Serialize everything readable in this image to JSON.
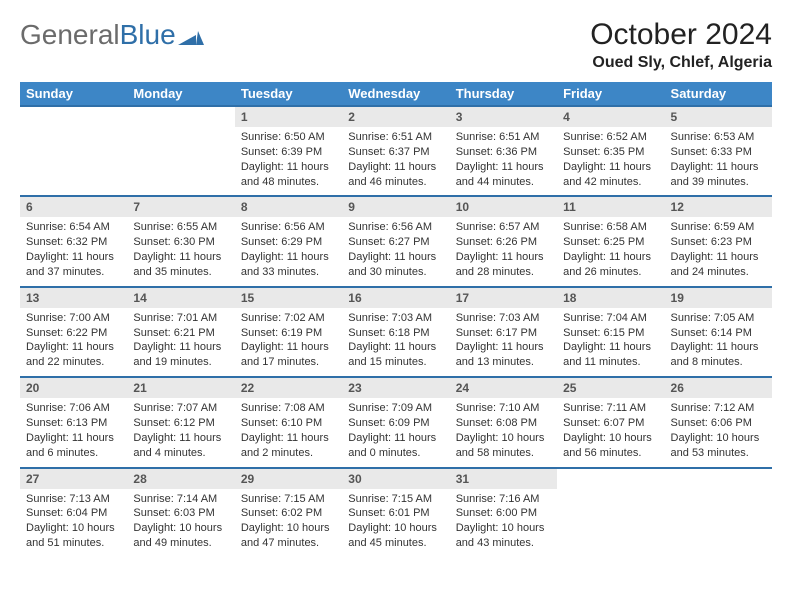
{
  "brand": {
    "part1": "General",
    "part2": "Blue"
  },
  "title": {
    "month": "October 2024",
    "location": "Oued Sly, Chlef, Algeria"
  },
  "colors": {
    "header_bg": "#3d86c6",
    "header_fg": "#ffffff",
    "cell_border": "#2f6fa8",
    "daynum_bg": "#e9e9e9",
    "logo_gray": "#6b6b6b",
    "logo_blue": "#2f6fa8"
  },
  "weekday_labels": [
    "Sunday",
    "Monday",
    "Tuesday",
    "Wednesday",
    "Thursday",
    "Friday",
    "Saturday"
  ],
  "first_weekday_index": 2,
  "days": [
    {
      "n": 1,
      "sunrise": "6:50 AM",
      "sunset": "6:39 PM",
      "daylight": "11 hours and 48 minutes."
    },
    {
      "n": 2,
      "sunrise": "6:51 AM",
      "sunset": "6:37 PM",
      "daylight": "11 hours and 46 minutes."
    },
    {
      "n": 3,
      "sunrise": "6:51 AM",
      "sunset": "6:36 PM",
      "daylight": "11 hours and 44 minutes."
    },
    {
      "n": 4,
      "sunrise": "6:52 AM",
      "sunset": "6:35 PM",
      "daylight": "11 hours and 42 minutes."
    },
    {
      "n": 5,
      "sunrise": "6:53 AM",
      "sunset": "6:33 PM",
      "daylight": "11 hours and 39 minutes."
    },
    {
      "n": 6,
      "sunrise": "6:54 AM",
      "sunset": "6:32 PM",
      "daylight": "11 hours and 37 minutes."
    },
    {
      "n": 7,
      "sunrise": "6:55 AM",
      "sunset": "6:30 PM",
      "daylight": "11 hours and 35 minutes."
    },
    {
      "n": 8,
      "sunrise": "6:56 AM",
      "sunset": "6:29 PM",
      "daylight": "11 hours and 33 minutes."
    },
    {
      "n": 9,
      "sunrise": "6:56 AM",
      "sunset": "6:27 PM",
      "daylight": "11 hours and 30 minutes."
    },
    {
      "n": 10,
      "sunrise": "6:57 AM",
      "sunset": "6:26 PM",
      "daylight": "11 hours and 28 minutes."
    },
    {
      "n": 11,
      "sunrise": "6:58 AM",
      "sunset": "6:25 PM",
      "daylight": "11 hours and 26 minutes."
    },
    {
      "n": 12,
      "sunrise": "6:59 AM",
      "sunset": "6:23 PM",
      "daylight": "11 hours and 24 minutes."
    },
    {
      "n": 13,
      "sunrise": "7:00 AM",
      "sunset": "6:22 PM",
      "daylight": "11 hours and 22 minutes."
    },
    {
      "n": 14,
      "sunrise": "7:01 AM",
      "sunset": "6:21 PM",
      "daylight": "11 hours and 19 minutes."
    },
    {
      "n": 15,
      "sunrise": "7:02 AM",
      "sunset": "6:19 PM",
      "daylight": "11 hours and 17 minutes."
    },
    {
      "n": 16,
      "sunrise": "7:03 AM",
      "sunset": "6:18 PM",
      "daylight": "11 hours and 15 minutes."
    },
    {
      "n": 17,
      "sunrise": "7:03 AM",
      "sunset": "6:17 PM",
      "daylight": "11 hours and 13 minutes."
    },
    {
      "n": 18,
      "sunrise": "7:04 AM",
      "sunset": "6:15 PM",
      "daylight": "11 hours and 11 minutes."
    },
    {
      "n": 19,
      "sunrise": "7:05 AM",
      "sunset": "6:14 PM",
      "daylight": "11 hours and 8 minutes."
    },
    {
      "n": 20,
      "sunrise": "7:06 AM",
      "sunset": "6:13 PM",
      "daylight": "11 hours and 6 minutes."
    },
    {
      "n": 21,
      "sunrise": "7:07 AM",
      "sunset": "6:12 PM",
      "daylight": "11 hours and 4 minutes."
    },
    {
      "n": 22,
      "sunrise": "7:08 AM",
      "sunset": "6:10 PM",
      "daylight": "11 hours and 2 minutes."
    },
    {
      "n": 23,
      "sunrise": "7:09 AM",
      "sunset": "6:09 PM",
      "daylight": "11 hours and 0 minutes."
    },
    {
      "n": 24,
      "sunrise": "7:10 AM",
      "sunset": "6:08 PM",
      "daylight": "10 hours and 58 minutes."
    },
    {
      "n": 25,
      "sunrise": "7:11 AM",
      "sunset": "6:07 PM",
      "daylight": "10 hours and 56 minutes."
    },
    {
      "n": 26,
      "sunrise": "7:12 AM",
      "sunset": "6:06 PM",
      "daylight": "10 hours and 53 minutes."
    },
    {
      "n": 27,
      "sunrise": "7:13 AM",
      "sunset": "6:04 PM",
      "daylight": "10 hours and 51 minutes."
    },
    {
      "n": 28,
      "sunrise": "7:14 AM",
      "sunset": "6:03 PM",
      "daylight": "10 hours and 49 minutes."
    },
    {
      "n": 29,
      "sunrise": "7:15 AM",
      "sunset": "6:02 PM",
      "daylight": "10 hours and 47 minutes."
    },
    {
      "n": 30,
      "sunrise": "7:15 AM",
      "sunset": "6:01 PM",
      "daylight": "10 hours and 45 minutes."
    },
    {
      "n": 31,
      "sunrise": "7:16 AM",
      "sunset": "6:00 PM",
      "daylight": "10 hours and 43 minutes."
    }
  ],
  "labels": {
    "sunrise": "Sunrise:",
    "sunset": "Sunset:",
    "daylight": "Daylight:"
  }
}
